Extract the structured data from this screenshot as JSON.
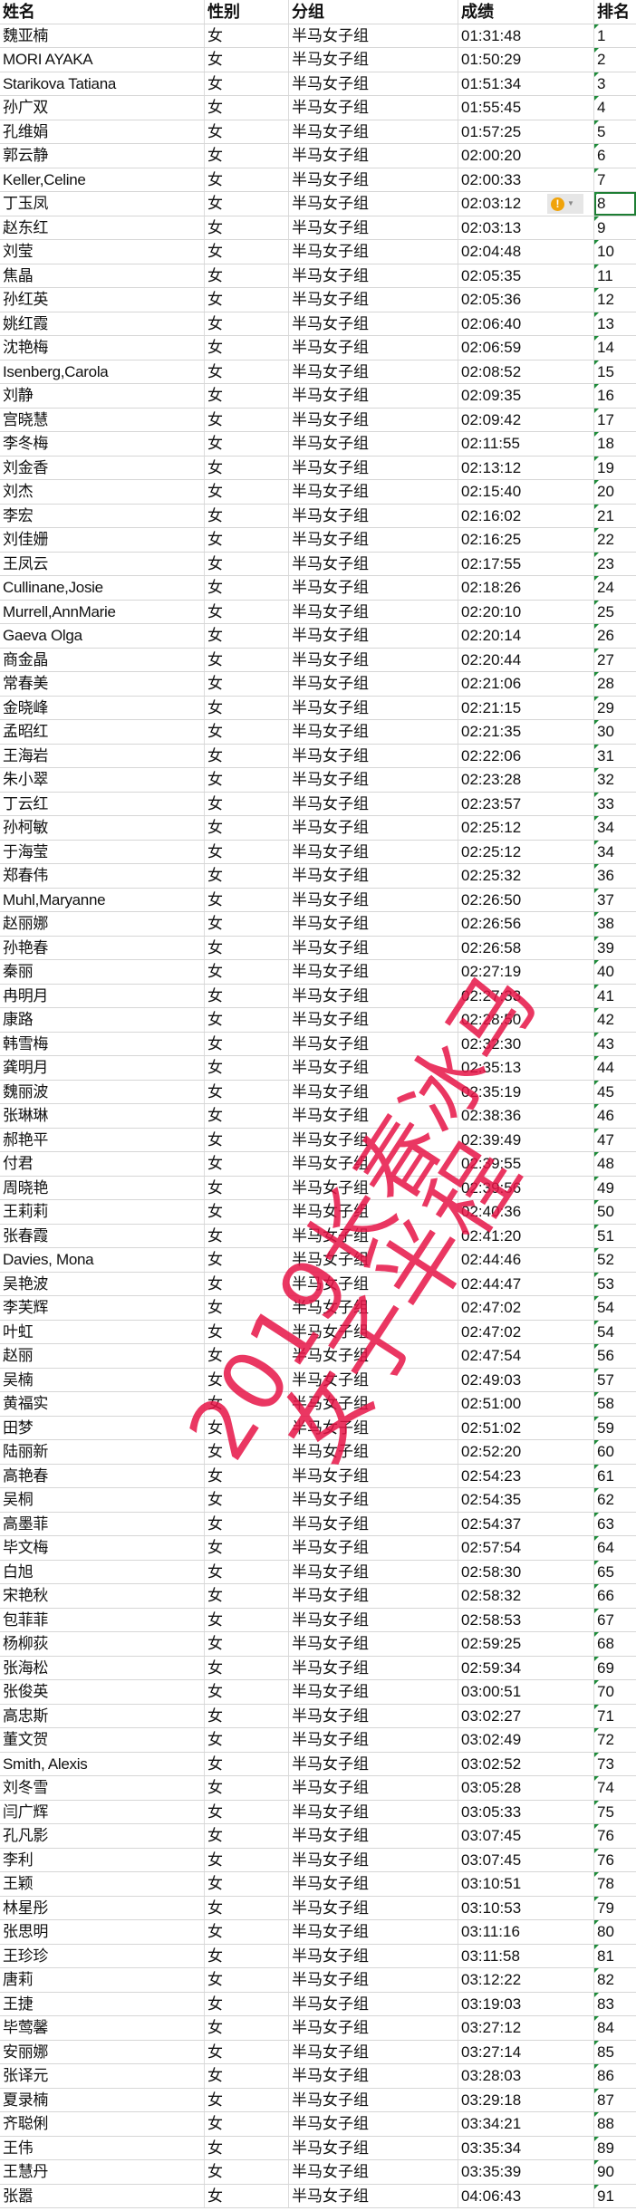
{
  "headers": [
    "姓名",
    "性别",
    "分组",
    "成绩",
    "排名"
  ],
  "rows": [
    [
      "魏亚楠",
      "女",
      "半马女子组",
      "01:31:48",
      "1"
    ],
    [
      "MORI AYAKA",
      "女",
      "半马女子组",
      "01:50:29",
      "2"
    ],
    [
      "Starikova Tatiana",
      "女",
      "半马女子组",
      "01:51:34",
      "3"
    ],
    [
      "孙广双",
      "女",
      "半马女子组",
      "01:55:45",
      "4"
    ],
    [
      "孔维娟",
      "女",
      "半马女子组",
      "01:57:25",
      "5"
    ],
    [
      "郭云静",
      "女",
      "半马女子组",
      "02:00:20",
      "6"
    ],
    [
      "Keller,Celine",
      "女",
      "半马女子组",
      "02:00:33",
      "7"
    ],
    [
      "丁玉凤",
      "女",
      "半马女子组",
      "02:03:12",
      "8"
    ],
    [
      "赵东红",
      "女",
      "半马女子组",
      "02:03:13",
      "9"
    ],
    [
      "刘莹",
      "女",
      "半马女子组",
      "02:04:48",
      "10"
    ],
    [
      "焦晶",
      "女",
      "半马女子组",
      "02:05:35",
      "11"
    ],
    [
      "孙红英",
      "女",
      "半马女子组",
      "02:05:36",
      "12"
    ],
    [
      "姚红霞",
      "女",
      "半马女子组",
      "02:06:40",
      "13"
    ],
    [
      "沈艳梅",
      "女",
      "半马女子组",
      "02:06:59",
      "14"
    ],
    [
      "Isenberg,Carola",
      "女",
      "半马女子组",
      "02:08:52",
      "15"
    ],
    [
      "刘静",
      "女",
      "半马女子组",
      "02:09:35",
      "16"
    ],
    [
      "宫晓慧",
      "女",
      "半马女子组",
      "02:09:42",
      "17"
    ],
    [
      "李冬梅",
      "女",
      "半马女子组",
      "02:11:55",
      "18"
    ],
    [
      "刘金香",
      "女",
      "半马女子组",
      "02:13:12",
      "19"
    ],
    [
      "刘杰",
      "女",
      "半马女子组",
      "02:15:40",
      "20"
    ],
    [
      "李宏",
      "女",
      "半马女子组",
      "02:16:02",
      "21"
    ],
    [
      "刘佳姗",
      "女",
      "半马女子组",
      "02:16:25",
      "22"
    ],
    [
      "王凤云",
      "女",
      "半马女子组",
      "02:17:55",
      "23"
    ],
    [
      "Cullinane,Josie",
      "女",
      "半马女子组",
      "02:18:26",
      "24"
    ],
    [
      "Murrell,AnnMarie",
      "女",
      "半马女子组",
      "02:20:10",
      "25"
    ],
    [
      "Gaeva Olga",
      "女",
      "半马女子组",
      "02:20:14",
      "26"
    ],
    [
      "商金晶",
      "女",
      "半马女子组",
      "02:20:44",
      "27"
    ],
    [
      "常春美",
      "女",
      "半马女子组",
      "02:21:06",
      "28"
    ],
    [
      "金晓峰",
      "女",
      "半马女子组",
      "02:21:15",
      "29"
    ],
    [
      "孟昭红",
      "女",
      "半马女子组",
      "02:21:35",
      "30"
    ],
    [
      "王海岩",
      "女",
      "半马女子组",
      "02:22:06",
      "31"
    ],
    [
      "朱小翠",
      "女",
      "半马女子组",
      "02:23:28",
      "32"
    ],
    [
      "丁云红",
      "女",
      "半马女子组",
      "02:23:57",
      "33"
    ],
    [
      "孙柯敏",
      "女",
      "半马女子组",
      "02:25:12",
      "34"
    ],
    [
      "于海莹",
      "女",
      "半马女子组",
      "02:25:12",
      "34"
    ],
    [
      "郑春伟",
      "女",
      "半马女子组",
      "02:25:32",
      "36"
    ],
    [
      "Muhl,Maryanne",
      "女",
      "半马女子组",
      "02:26:50",
      "37"
    ],
    [
      "赵丽娜",
      "女",
      "半马女子组",
      "02:26:56",
      "38"
    ],
    [
      "孙艳春",
      "女",
      "半马女子组",
      "02:26:58",
      "39"
    ],
    [
      "秦丽",
      "女",
      "半马女子组",
      "02:27:19",
      "40"
    ],
    [
      "冉明月",
      "女",
      "半马女子组",
      "02:27:33",
      "41"
    ],
    [
      "康路",
      "女",
      "半马女子组",
      "02:28:50",
      "42"
    ],
    [
      "韩雪梅",
      "女",
      "半马女子组",
      "02:32:30",
      "43"
    ],
    [
      "龚明月",
      "女",
      "半马女子组",
      "02:35:13",
      "44"
    ],
    [
      "魏丽波",
      "女",
      "半马女子组",
      "02:35:19",
      "45"
    ],
    [
      "张琳琳",
      "女",
      "半马女子组",
      "02:38:36",
      "46"
    ],
    [
      "郝艳平",
      "女",
      "半马女子组",
      "02:39:49",
      "47"
    ],
    [
      "付君",
      "女",
      "半马女子组",
      "02:39:55",
      "48"
    ],
    [
      "周晓艳",
      "女",
      "半马女子组",
      "02:39:56",
      "49"
    ],
    [
      "王莉莉",
      "女",
      "半马女子组",
      "02:40:36",
      "50"
    ],
    [
      "张春霞",
      "女",
      "半马女子组",
      "02:41:20",
      "51"
    ],
    [
      "Davies, Mona",
      "女",
      "半马女子组",
      "02:44:46",
      "52"
    ],
    [
      "吴艳波",
      "女",
      "半马女子组",
      "02:44:47",
      "53"
    ],
    [
      "李芙辉",
      "女",
      "半马女子组",
      "02:47:02",
      "54"
    ],
    [
      "叶虹",
      "女",
      "半马女子组",
      "02:47:02",
      "54"
    ],
    [
      "赵丽",
      "女",
      "半马女子组",
      "02:47:54",
      "56"
    ],
    [
      "吴楠",
      "女",
      "半马女子组",
      "02:49:03",
      "57"
    ],
    [
      "黄福实",
      "女",
      "半马女子组",
      "02:51:00",
      "58"
    ],
    [
      "田梦",
      "女",
      "半马女子组",
      "02:51:02",
      "59"
    ],
    [
      "陆丽新",
      "女",
      "半马女子组",
      "02:52:20",
      "60"
    ],
    [
      "高艳春",
      "女",
      "半马女子组",
      "02:54:23",
      "61"
    ],
    [
      "吴桐",
      "女",
      "半马女子组",
      "02:54:35",
      "62"
    ],
    [
      "高墨菲",
      "女",
      "半马女子组",
      "02:54:37",
      "63"
    ],
    [
      "毕文梅",
      "女",
      "半马女子组",
      "02:57:54",
      "64"
    ],
    [
      "白旭",
      "女",
      "半马女子组",
      "02:58:30",
      "65"
    ],
    [
      "宋艳秋",
      "女",
      "半马女子组",
      "02:58:32",
      "66"
    ],
    [
      "包菲菲",
      "女",
      "半马女子组",
      "02:58:53",
      "67"
    ],
    [
      "杨柳荻",
      "女",
      "半马女子组",
      "02:59:25",
      "68"
    ],
    [
      "张海松",
      "女",
      "半马女子组",
      "02:59:34",
      "69"
    ],
    [
      "张俊英",
      "女",
      "半马女子组",
      "03:00:51",
      "70"
    ],
    [
      "高忠斯",
      "女",
      "半马女子组",
      "03:02:27",
      "71"
    ],
    [
      "董文贺",
      "女",
      "半马女子组",
      "03:02:49",
      "72"
    ],
    [
      "Smith, Alexis",
      "女",
      "半马女子组",
      "03:02:52",
      "73"
    ],
    [
      "刘冬雪",
      "女",
      "半马女子组",
      "03:05:28",
      "74"
    ],
    [
      "闫广辉",
      "女",
      "半马女子组",
      "03:05:33",
      "75"
    ],
    [
      "孔凡影",
      "女",
      "半马女子组",
      "03:07:45",
      "76"
    ],
    [
      "李利",
      "女",
      "半马女子组",
      "03:07:45",
      "76"
    ],
    [
      "王颖",
      "女",
      "半马女子组",
      "03:10:51",
      "78"
    ],
    [
      "林星彤",
      "女",
      "半马女子组",
      "03:10:53",
      "79"
    ],
    [
      "张思明",
      "女",
      "半马女子组",
      "03:11:16",
      "80"
    ],
    [
      "王珍珍",
      "女",
      "半马女子组",
      "03:11:58",
      "81"
    ],
    [
      "唐莉",
      "女",
      "半马女子组",
      "03:12:22",
      "82"
    ],
    [
      "王捷",
      "女",
      "半马女子组",
      "03:19:03",
      "83"
    ],
    [
      "毕莺馨",
      "女",
      "半马女子组",
      "03:27:12",
      "84"
    ],
    [
      "安丽娜",
      "女",
      "半马女子组",
      "03:27:14",
      "85"
    ],
    [
      "张译元",
      "女",
      "半马女子组",
      "03:28:03",
      "86"
    ],
    [
      "夏录楠",
      "女",
      "半马女子组",
      "03:29:18",
      "87"
    ],
    [
      "齐聪俐",
      "女",
      "半马女子组",
      "03:34:21",
      "88"
    ],
    [
      "王伟",
      "女",
      "半马女子组",
      "03:35:34",
      "89"
    ],
    [
      "王慧丹",
      "女",
      "半马女子组",
      "03:35:39",
      "90"
    ],
    [
      "张嚣",
      "女",
      "半马女子组",
      "04:06:43",
      "91"
    ]
  ],
  "selected_rank_row": 8,
  "warning_icon": "exclamation-circle-icon",
  "watermark": {
    "line1": "2019长春冰马",
    "line2": "女子半程",
    "color": "#e61446"
  },
  "colors": {
    "grid": "#d6d6d6",
    "selection": "#1e7e34",
    "warning": "#f0a30a",
    "number_text_flag": "#1e8b3a"
  }
}
